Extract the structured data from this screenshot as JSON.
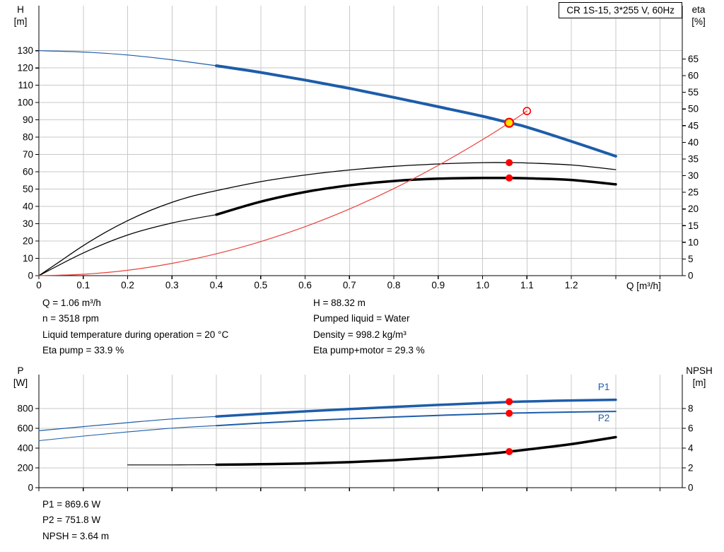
{
  "colors": {
    "curve_blue": "#1d5da9",
    "curve_black": "#000000",
    "curve_red": "#e8423b",
    "marker_red": "#ff0000",
    "marker_yellow": "#ffe100",
    "grid": "#c9c9c9",
    "axis": "#000000"
  },
  "info": {
    "q": "Q = 1.06 m³/h",
    "n": "n = 3518 rpm",
    "liquid_temp": "Liquid temperature during operation = 20 °C",
    "eta_pump": "Eta pump = 33.9 %",
    "h": "H = 88.32 m",
    "pumped_liquid": "Pumped liquid = Water",
    "density": "Density = 998.2 kg/m³",
    "eta_pump_motor": "Eta pump+motor = 29.3 %",
    "p1": "P1 = 869.6 W",
    "p2": "P2 = 751.8 W",
    "npsh": "NPSH = 3.64 m"
  },
  "chart_data": [
    {
      "id": "hq-eta",
      "type": "line",
      "title": "CR 1S-15, 3*255 V, 60Hz",
      "xlabel": "Q [m³/h]",
      "ylabel_left": [
        "H",
        "[m]"
      ],
      "ylabel_right": [
        "eta",
        "[%]"
      ],
      "xlim": [
        0,
        1.45
      ],
      "ylim_left": [
        0,
        156
      ],
      "ylim_right": [
        0,
        81
      ],
      "grid": true,
      "x_ticks": [
        [
          0,
          "0"
        ],
        [
          0.1,
          "0.1"
        ],
        [
          0.2,
          "0.2"
        ],
        [
          0.3,
          "0.3"
        ],
        [
          0.4,
          "0.4"
        ],
        [
          0.5,
          "0.5"
        ],
        [
          0.6,
          "0.6"
        ],
        [
          0.7,
          "0.7"
        ],
        [
          0.8,
          "0.8"
        ],
        [
          0.9,
          "0.9"
        ],
        [
          1,
          "1.0"
        ],
        [
          1.1,
          "1.1"
        ],
        [
          1.2,
          "1.2"
        ],
        [
          1.3,
          ""
        ],
        [
          1.4,
          ""
        ]
      ],
      "y_ticks_left": [
        [
          0,
          "0"
        ],
        [
          10,
          "10"
        ],
        [
          20,
          "20"
        ],
        [
          30,
          "30"
        ],
        [
          40,
          "40"
        ],
        [
          50,
          "50"
        ],
        [
          60,
          "60"
        ],
        [
          70,
          "70"
        ],
        [
          80,
          "80"
        ],
        [
          90,
          "90"
        ],
        [
          100,
          "100"
        ],
        [
          110,
          "110"
        ],
        [
          120,
          "120"
        ],
        [
          130,
          "130"
        ]
      ],
      "y_ticks_right": [
        [
          0,
          "0"
        ],
        [
          5,
          "5"
        ],
        [
          10,
          "10"
        ],
        [
          15,
          "15"
        ],
        [
          20,
          "20"
        ],
        [
          25,
          "25"
        ],
        [
          30,
          "30"
        ],
        [
          35,
          "35"
        ],
        [
          40,
          "40"
        ],
        [
          45,
          "45"
        ],
        [
          50,
          "50"
        ],
        [
          55,
          "55"
        ],
        [
          60,
          "60"
        ],
        [
          65,
          "65"
        ]
      ],
      "series": [
        {
          "name": "h-curve-lowflow",
          "axis": "left",
          "color": "#1d5da9",
          "width": 1.2,
          "points": [
            [
              0,
              130
            ],
            [
              0.1,
              129.2
            ],
            [
              0.2,
              127.5
            ],
            [
              0.3,
              124.7
            ],
            [
              0.4,
              121.3
            ]
          ]
        },
        {
          "name": "h-curve",
          "axis": "left",
          "color": "#1d5da9",
          "width": 4,
          "points": [
            [
              0.4,
              121.3
            ],
            [
              0.5,
              117.4
            ],
            [
              0.6,
              113.0
            ],
            [
              0.7,
              108.2
            ],
            [
              0.8,
              103.0
            ],
            [
              0.9,
              97.6
            ],
            [
              1.0,
              92.1
            ],
            [
              1.06,
              88.32
            ],
            [
              1.1,
              85.8
            ],
            [
              1.2,
              77.6
            ],
            [
              1.3,
              69.0
            ]
          ]
        },
        {
          "name": "eta-pump",
          "axis": "right",
          "color": "#000000",
          "width": 1.3,
          "points": [
            [
              0,
              0
            ],
            [
              0.05,
              4.5
            ],
            [
              0.1,
              9.0
            ],
            [
              0.15,
              13.0
            ],
            [
              0.2,
              16.5
            ],
            [
              0.25,
              19.5
            ],
            [
              0.3,
              22.0
            ],
            [
              0.35,
              24.0
            ],
            [
              0.4,
              25.5
            ],
            [
              0.5,
              28.2
            ],
            [
              0.6,
              30.2
            ],
            [
              0.7,
              31.7
            ],
            [
              0.8,
              32.8
            ],
            [
              0.9,
              33.5
            ],
            [
              1.0,
              33.9
            ],
            [
              1.06,
              33.9
            ],
            [
              1.1,
              33.8
            ],
            [
              1.2,
              33.2
            ],
            [
              1.3,
              31.8
            ]
          ]
        },
        {
          "name": "eta-pump-motor-lowflow",
          "axis": "right",
          "color": "#000000",
          "width": 1.2,
          "points": [
            [
              0,
              0
            ],
            [
              0.1,
              6.8
            ],
            [
              0.2,
              12.2
            ],
            [
              0.3,
              15.8
            ],
            [
              0.4,
              18.3
            ]
          ]
        },
        {
          "name": "eta-pump-motor",
          "axis": "right",
          "color": "#000000",
          "width": 3.5,
          "points": [
            [
              0.4,
              18.3
            ],
            [
              0.5,
              22.2
            ],
            [
              0.6,
              25.1
            ],
            [
              0.7,
              27.1
            ],
            [
              0.8,
              28.4
            ],
            [
              0.9,
              29.1
            ],
            [
              1.0,
              29.3
            ],
            [
              1.06,
              29.3
            ],
            [
              1.1,
              29.2
            ],
            [
              1.2,
              28.7
            ],
            [
              1.3,
              27.4
            ]
          ]
        },
        {
          "name": "system-curve",
          "axis": "left",
          "color": "#e8423b",
          "width": 1.2,
          "points": [
            [
              0,
              0
            ],
            [
              0.1,
              0.8
            ],
            [
              0.2,
              3.1
            ],
            [
              0.3,
              7.1
            ],
            [
              0.4,
              12.6
            ],
            [
              0.5,
              19.7
            ],
            [
              0.6,
              28.3
            ],
            [
              0.7,
              38.5
            ],
            [
              0.8,
              50.3
            ],
            [
              0.9,
              63.7
            ],
            [
              1.0,
              78.6
            ],
            [
              1.06,
              88.3
            ],
            [
              1.1,
              95.1
            ]
          ]
        }
      ],
      "series_labels": [],
      "markers": [
        {
          "name": "duty-point-eta-pump",
          "x": 1.06,
          "y": 33.9,
          "axis": "right",
          "r": 5,
          "fill": "#ff0000"
        },
        {
          "name": "duty-point-eta-pump-motor",
          "x": 1.06,
          "y": 29.3,
          "axis": "right",
          "r": 5,
          "fill": "#ff0000"
        },
        {
          "name": "system-curve-end-marker",
          "x": 1.1,
          "y": 95.1,
          "axis": "left",
          "r": 5,
          "fill": "none",
          "stroke": "#ff0000",
          "sw": 1.6
        },
        {
          "name": "duty-point",
          "x": 1.06,
          "y": 88.32,
          "axis": "left",
          "r": 6,
          "fill": "#ffe100",
          "stroke": "#ff0000",
          "sw": 2.2
        }
      ]
    },
    {
      "id": "power-npsh",
      "type": "line",
      "title": "",
      "xlabel": "",
      "ylabel_left": [
        "P",
        "[W]"
      ],
      "ylabel_right": [
        "NPSH",
        "[m]"
      ],
      "xlim": [
        0,
        1.45
      ],
      "ylim_left": [
        0,
        1142
      ],
      "ylim_right": [
        0,
        11.42
      ],
      "grid": true,
      "x_ticks": [
        [
          0,
          ""
        ],
        [
          0.1,
          ""
        ],
        [
          0.2,
          ""
        ],
        [
          0.3,
          ""
        ],
        [
          0.4,
          ""
        ],
        [
          0.5,
          ""
        ],
        [
          0.6,
          ""
        ],
        [
          0.7,
          ""
        ],
        [
          0.8,
          ""
        ],
        [
          0.9,
          ""
        ],
        [
          1,
          ""
        ],
        [
          1.1,
          ""
        ],
        [
          1.2,
          ""
        ],
        [
          1.3,
          ""
        ],
        [
          1.4,
          ""
        ]
      ],
      "y_ticks_left": [
        [
          0,
          "0"
        ],
        [
          200,
          "200"
        ],
        [
          400,
          "400"
        ],
        [
          600,
          "600"
        ],
        [
          800,
          "800"
        ]
      ],
      "y_ticks_right": [
        [
          0,
          "0"
        ],
        [
          2,
          "2"
        ],
        [
          4,
          "4"
        ],
        [
          6,
          "6"
        ],
        [
          8,
          "8"
        ]
      ],
      "series": [
        {
          "name": "p1-lowflow",
          "axis": "left",
          "color": "#1d5da9",
          "width": 1.2,
          "points": [
            [
              0,
              575
            ],
            [
              0.1,
              617
            ],
            [
              0.2,
              657
            ],
            [
              0.3,
              694
            ],
            [
              0.4,
              719
            ]
          ]
        },
        {
          "name": "p1",
          "axis": "left",
          "color": "#1d5da9",
          "width": 3.5,
          "points": [
            [
              0.4,
              719
            ],
            [
              0.5,
              746
            ],
            [
              0.6,
              771
            ],
            [
              0.7,
              794
            ],
            [
              0.8,
              816
            ],
            [
              0.9,
              836
            ],
            [
              1.0,
              855
            ],
            [
              1.06,
              866
            ],
            [
              1.1,
              871
            ],
            [
              1.2,
              881
            ],
            [
              1.3,
              888
            ]
          ]
        },
        {
          "name": "p2-lowflow",
          "axis": "left",
          "color": "#1d5da9",
          "width": 1.1,
          "points": [
            [
              0,
              475
            ],
            [
              0.1,
              521
            ],
            [
              0.2,
              563
            ],
            [
              0.3,
              601
            ],
            [
              0.4,
              627
            ]
          ]
        },
        {
          "name": "p2",
          "axis": "left",
          "color": "#1d5da9",
          "width": 2,
          "points": [
            [
              0.4,
              627
            ],
            [
              0.5,
              653
            ],
            [
              0.6,
              676
            ],
            [
              0.7,
              696
            ],
            [
              0.8,
              714
            ],
            [
              0.9,
              730
            ],
            [
              1.0,
              744
            ],
            [
              1.06,
              752
            ],
            [
              1.1,
              756
            ],
            [
              1.2,
              764
            ],
            [
              1.3,
              770
            ]
          ]
        },
        {
          "name": "npsh-lowflow",
          "axis": "right",
          "color": "#000000",
          "width": 1.2,
          "points": [
            [
              0.2,
              2.3
            ],
            [
              0.3,
              2.3
            ],
            [
              0.4,
              2.32
            ]
          ]
        },
        {
          "name": "npsh",
          "axis": "right",
          "color": "#000000",
          "width": 3.5,
          "points": [
            [
              0.4,
              2.32
            ],
            [
              0.5,
              2.37
            ],
            [
              0.6,
              2.45
            ],
            [
              0.7,
              2.58
            ],
            [
              0.8,
              2.78
            ],
            [
              0.9,
              3.05
            ],
            [
              1.0,
              3.38
            ],
            [
              1.06,
              3.64
            ],
            [
              1.1,
              3.85
            ],
            [
              1.2,
              4.4
            ],
            [
              1.3,
              5.1
            ]
          ]
        }
      ],
      "series_labels": [
        {
          "text": "P1",
          "x": 1.26,
          "y": 985,
          "axis": "left",
          "color": "#1d5da9"
        },
        {
          "text": "P2",
          "x": 1.26,
          "y": 672,
          "axis": "left",
          "color": "#1d5da9"
        }
      ],
      "markers": [
        {
          "name": "duty-point-p1",
          "x": 1.06,
          "y": 869.6,
          "axis": "left",
          "r": 5,
          "fill": "#ff0000"
        },
        {
          "name": "duty-point-p2",
          "x": 1.06,
          "y": 751.8,
          "axis": "left",
          "r": 5,
          "fill": "#ff0000"
        },
        {
          "name": "duty-point-npsh",
          "x": 1.06,
          "y": 3.64,
          "axis": "right",
          "r": 5,
          "fill": "#ff0000"
        }
      ]
    }
  ]
}
